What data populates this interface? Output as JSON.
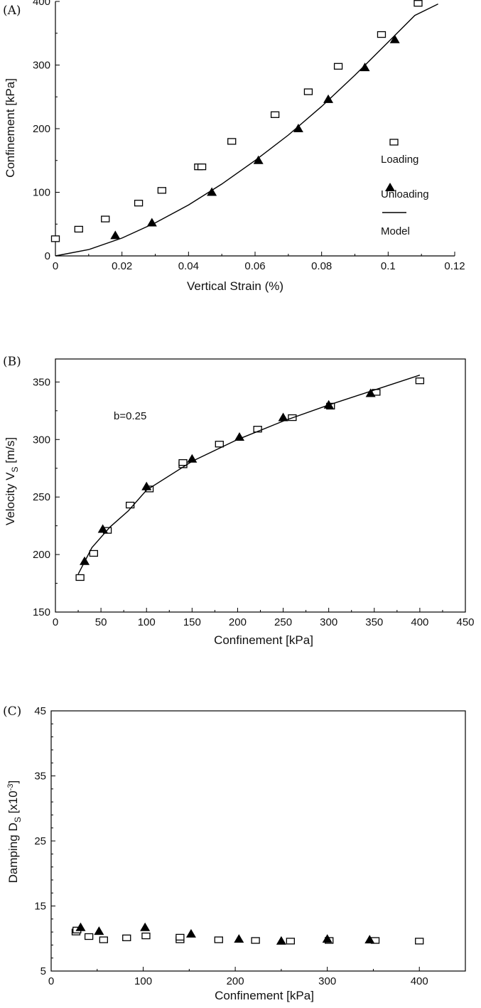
{
  "chart_data": [
    {
      "type": "scatter",
      "panel_label": "(A)",
      "xlabel": "Vertical Strain (%)",
      "ylabel": "Confinement [kPa]",
      "xlim": [
        0,
        0.12
      ],
      "ylim": [
        0,
        400
      ],
      "xticks": [
        "0",
        "0.02",
        "0.04",
        "0.06",
        "0.08",
        "0.1",
        "0.12"
      ],
      "yticks": [
        "0",
        "100",
        "200",
        "300",
        "400"
      ],
      "legend": {
        "loading": "Loading",
        "unloading": "Unloading",
        "model": "Model",
        "position": "bottom-right"
      },
      "series": [
        {
          "name": "Loading",
          "marker": "square",
          "points": [
            [
              0.0,
              27
            ],
            [
              0.007,
              42
            ],
            [
              0.015,
              58
            ],
            [
              0.025,
              83
            ],
            [
              0.032,
              103
            ],
            [
              0.043,
              140
            ],
            [
              0.044,
              140
            ],
            [
              0.053,
              180
            ],
            [
              0.066,
              222
            ],
            [
              0.076,
              258
            ],
            [
              0.085,
              298
            ],
            [
              0.098,
              348
            ],
            [
              0.109,
              397
            ]
          ]
        },
        {
          "name": "Unloading",
          "marker": "triangle",
          "points": [
            [
              0.018,
              32
            ],
            [
              0.029,
              52
            ],
            [
              0.047,
              100
            ],
            [
              0.061,
              150
            ],
            [
              0.073,
              200
            ],
            [
              0.082,
              246
            ],
            [
              0.093,
              296
            ],
            [
              0.102,
              340
            ]
          ]
        },
        {
          "name": "Model",
          "marker": "line",
          "points": [
            [
              0.0,
              0
            ],
            [
              0.01,
              10
            ],
            [
              0.02,
              28
            ],
            [
              0.03,
              52
            ],
            [
              0.04,
              80
            ],
            [
              0.05,
              113
            ],
            [
              0.06,
              150
            ],
            [
              0.07,
              190
            ],
            [
              0.08,
              235
            ],
            [
              0.09,
              284
            ],
            [
              0.1,
              336
            ],
            [
              0.108,
              378
            ],
            [
              0.115,
              396
            ]
          ]
        }
      ]
    },
    {
      "type": "scatter",
      "panel_label": "(B)",
      "xlabel": "Confinement [kPa]",
      "ylabel_main": "Velocity V",
      "ylabel_sub": "S",
      "ylabel_unit": " [m/s]",
      "xlim": [
        0,
        450
      ],
      "ylim": [
        150,
        370
      ],
      "xticks": [
        "0",
        "50",
        "100",
        "150",
        "200",
        "250",
        "300",
        "350",
        "400",
        "450"
      ],
      "yticks": [
        "150",
        "200",
        "250",
        "300",
        "350"
      ],
      "annotation": "b=0.25",
      "series": [
        {
          "name": "Loading",
          "marker": "square",
          "points": [
            [
              27,
              180
            ],
            [
              42,
              201
            ],
            [
              57,
              221
            ],
            [
              82,
              243
            ],
            [
              103,
              257
            ],
            [
              140,
              278
            ],
            [
              140,
              280
            ],
            [
              180,
              296
            ],
            [
              222,
              309
            ],
            [
              260,
              319
            ],
            [
              302,
              329
            ],
            [
              352,
              341
            ],
            [
              400,
              351
            ]
          ]
        },
        {
          "name": "Unloading",
          "marker": "triangle",
          "points": [
            [
              32,
              194
            ],
            [
              52,
              222
            ],
            [
              100,
              259
            ],
            [
              150,
              283
            ],
            [
              202,
              302
            ],
            [
              250,
              319
            ],
            [
              300,
              330
            ],
            [
              346,
              340
            ]
          ]
        },
        {
          "name": "Model",
          "marker": "line",
          "points": [
            [
              25,
              183
            ],
            [
              40,
              206
            ],
            [
              60,
              224
            ],
            [
              80,
              238
            ],
            [
              100,
              256
            ],
            [
              150,
              281
            ],
            [
              200,
              300
            ],
            [
              250,
              316
            ],
            [
              300,
              330
            ],
            [
              350,
              343
            ],
            [
              400,
              356
            ]
          ]
        }
      ]
    },
    {
      "type": "scatter",
      "panel_label": "(C)",
      "xlabel": "Confinement [kPa]",
      "ylabel_main": "Damping D",
      "ylabel_sub": "S",
      "ylabel_unit": " [x10",
      "ylabel_sup": "-3",
      "ylabel_end": "]",
      "xlim": [
        0,
        450
      ],
      "ylim": [
        5,
        45
      ],
      "xticks": [
        "0",
        "100",
        "200",
        "300",
        "400"
      ],
      "yticks": [
        "5",
        "15",
        "25",
        "35",
        "45"
      ],
      "series": [
        {
          "name": "Loading",
          "marker": "square",
          "points": [
            [
              27,
              11.0
            ],
            [
              28,
              11.3
            ],
            [
              41,
              10.3
            ],
            [
              57,
              9.8
            ],
            [
              82,
              10.1
            ],
            [
              103,
              10.4
            ],
            [
              140,
              9.8
            ],
            [
              140,
              10.2
            ],
            [
              182,
              9.8
            ],
            [
              222,
              9.7
            ],
            [
              260,
              9.6
            ],
            [
              302,
              9.7
            ],
            [
              352,
              9.7
            ],
            [
              400,
              9.6
            ]
          ]
        },
        {
          "name": "Unloading",
          "marker": "triangle",
          "points": [
            [
              32,
              11.7
            ],
            [
              52,
              11.1
            ],
            [
              102,
              11.7
            ],
            [
              152,
              10.7
            ],
            [
              204,
              9.9
            ],
            [
              250,
              9.6
            ],
            [
              300,
              9.9
            ],
            [
              346,
              9.8
            ]
          ]
        }
      ]
    }
  ]
}
